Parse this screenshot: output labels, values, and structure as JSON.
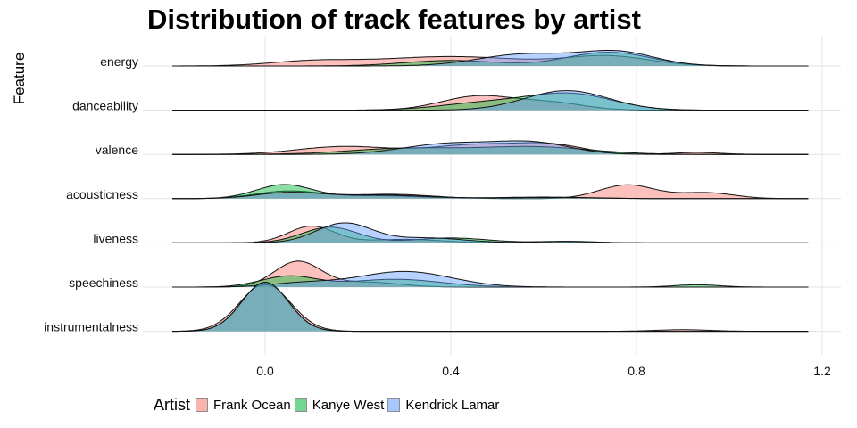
{
  "chart_data": {
    "type": "ridgeline",
    "title": "Distribution of track features by artist",
    "xlabel": "",
    "ylabel": "Feature",
    "xlim": [
      -0.2,
      1.2
    ],
    "x_ticks": [
      0.0,
      0.4,
      0.8,
      1.2
    ],
    "x_tick_labels": [
      "0.0",
      "0.4",
      "0.8",
      "1.2"
    ],
    "grid": true,
    "legend_title": "Artist",
    "legend_position": "bottom",
    "categories": [
      "energy",
      "danceability",
      "valence",
      "acousticness",
      "liveness",
      "speechiness",
      "instrumentalness"
    ],
    "series": [
      {
        "name": "Frank Ocean",
        "color": "#F8766D",
        "peaks": {
          "energy": [
            [
              0.1,
              0.22,
              0.09
            ],
            [
              0.4,
              0.48,
              0.16
            ],
            [
              0.74,
              0.48,
              0.09
            ]
          ],
          "danceability": [
            [
              0.46,
              0.72,
              0.08
            ],
            [
              0.62,
              0.35,
              0.07
            ]
          ],
          "valence": [
            [
              0.17,
              0.4,
              0.1
            ],
            [
              0.46,
              0.5,
              0.1
            ],
            [
              0.62,
              0.42,
              0.07
            ],
            [
              0.93,
              0.1,
              0.05
            ]
          ],
          "acousticness": [
            [
              0.05,
              0.38,
              0.07
            ],
            [
              0.27,
              0.22,
              0.09
            ],
            [
              0.78,
              0.7,
              0.06
            ],
            [
              0.95,
              0.3,
              0.06
            ]
          ],
          "liveness": [
            [
              0.1,
              0.85,
              0.05
            ],
            [
              0.3,
              0.18,
              0.08
            ],
            [
              0.62,
              0.06,
              0.06
            ]
          ],
          "speechiness": [
            [
              0.07,
              1.3,
              0.05
            ],
            [
              0.22,
              0.25,
              0.07
            ]
          ],
          "instrumentalness": [
            [
              0.0,
              2.4,
              0.055
            ],
            [
              0.9,
              0.08,
              0.06
            ]
          ]
        }
      },
      {
        "name": "Kanye West",
        "color": "#00BA38",
        "peaks": {
          "energy": [
            [
              0.4,
              0.28,
              0.1
            ],
            [
              0.74,
              0.7,
              0.09
            ]
          ],
          "danceability": [
            [
              0.48,
              0.38,
              0.1
            ],
            [
              0.66,
              0.8,
              0.09
            ]
          ],
          "valence": [
            [
              0.3,
              0.3,
              0.12
            ],
            [
              0.58,
              0.38,
              0.12
            ]
          ],
          "acousticness": [
            [
              0.04,
              0.7,
              0.06
            ],
            [
              0.24,
              0.15,
              0.1
            ],
            [
              0.6,
              0.08,
              0.1
            ]
          ],
          "liveness": [
            [
              0.14,
              0.8,
              0.06
            ],
            [
              0.4,
              0.25,
              0.08
            ],
            [
              0.65,
              0.08,
              0.06
            ]
          ],
          "speechiness": [
            [
              0.05,
              0.55,
              0.06
            ],
            [
              0.28,
              0.4,
              0.1
            ],
            [
              0.93,
              0.12,
              0.05
            ]
          ],
          "instrumentalness": [
            [
              0.0,
              2.5,
              0.05
            ]
          ]
        }
      },
      {
        "name": "Kendrick Lamar",
        "color": "#619CFF",
        "peaks": {
          "energy": [
            [
              0.56,
              0.6,
              0.1
            ],
            [
              0.76,
              0.7,
              0.08
            ]
          ],
          "danceability": [
            [
              0.65,
              1.0,
              0.09
            ]
          ],
          "valence": [
            [
              0.4,
              0.55,
              0.1
            ],
            [
              0.58,
              0.55,
              0.08
            ]
          ],
          "acousticness": [
            [
              0.05,
              0.3,
              0.07
            ],
            [
              0.25,
              0.18,
              0.1
            ],
            [
              0.6,
              0.06,
              0.1
            ]
          ],
          "liveness": [
            [
              0.17,
              1.0,
              0.06
            ],
            [
              0.35,
              0.25,
              0.08
            ],
            [
              0.65,
              0.07,
              0.06
            ]
          ],
          "speechiness": [
            [
              0.3,
              0.8,
              0.1
            ],
            [
              0.08,
              0.2,
              0.07
            ]
          ],
          "instrumentalness": [
            [
              0.0,
              2.5,
              0.05
            ]
          ]
        }
      }
    ]
  }
}
